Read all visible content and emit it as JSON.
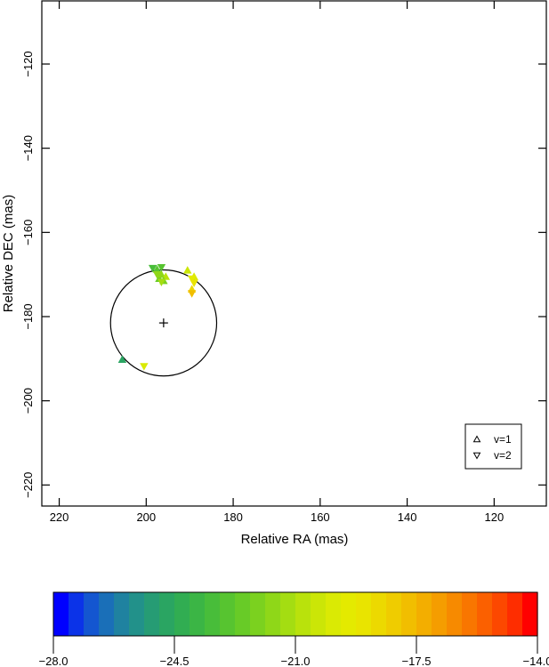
{
  "chart_data": {
    "type": "scatter",
    "xlabel": "Relative RA (mas)",
    "ylabel": "Relative DEC (mas)",
    "xlim": [
      224,
      108
    ],
    "ylim": [
      -225,
      -105
    ],
    "x_ticks": [
      220,
      200,
      180,
      160,
      140,
      120
    ],
    "y_ticks": [
      -120,
      -140,
      -160,
      -180,
      -200,
      -220
    ],
    "reference_circle": {
      "center": [
        196,
        -181.5
      ],
      "radius": 12.2
    },
    "center_marker": [
      196,
      -181.5
    ],
    "legend": {
      "position": "bottom-right",
      "entries": [
        {
          "symbol": "triangle-up",
          "label": "v=1"
        },
        {
          "symbol": "triangle-down",
          "label": "v=2"
        }
      ]
    },
    "series": [
      {
        "name": "v=1",
        "symbol": "triangle-up",
        "points": [
          {
            "x": 205.5,
            "y": -190.2,
            "v": -24.6
          },
          {
            "x": 197.5,
            "y": -168.8,
            "v": -23.0
          },
          {
            "x": 197.0,
            "y": -171.0,
            "v": -22.5
          },
          {
            "x": 196.5,
            "y": -170.0,
            "v": -21.8
          },
          {
            "x": 195.5,
            "y": -170.5,
            "v": -21.0
          },
          {
            "x": 196.0,
            "y": -171.5,
            "v": -22.0
          },
          {
            "x": 190.5,
            "y": -169.0,
            "v": -20.5
          },
          {
            "x": 189.0,
            "y": -170.5,
            "v": -19.8
          },
          {
            "x": 189.5,
            "y": -173.5,
            "v": -18.5
          }
        ]
      },
      {
        "name": "v=2",
        "symbol": "triangle-down",
        "points": [
          {
            "x": 200.5,
            "y": -191.8,
            "v": -20.0
          },
          {
            "x": 198.5,
            "y": -168.5,
            "v": -23.2
          },
          {
            "x": 196.5,
            "y": -168.3,
            "v": -22.8
          },
          {
            "x": 197.5,
            "y": -170.0,
            "v": -21.5
          },
          {
            "x": 196.5,
            "y": -171.8,
            "v": -21.2
          },
          {
            "x": 189.5,
            "y": -171.0,
            "v": -19.5
          },
          {
            "x": 189.0,
            "y": -172.0,
            "v": -19.0
          },
          {
            "x": 189.5,
            "y": -174.5,
            "v": -17.8
          }
        ]
      }
    ],
    "colorbar": {
      "min": -28.0,
      "max": -14.0,
      "tick_labels": [
        "−28.0",
        "−24.5",
        "−21.0",
        "−17.5",
        "−14.0"
      ],
      "tick_values": [
        -28.0,
        -24.5,
        -21.0,
        -17.5,
        -14.0
      ],
      "colors": [
        "#0000ff",
        "#0b33e8",
        "#1456d0",
        "#1a6fb8",
        "#1f82a0",
        "#22918a",
        "#269c74",
        "#2aa562",
        "#31ad52",
        "#3bb545",
        "#48bd3a",
        "#57c430",
        "#68cb27",
        "#7bd11f",
        "#8fd718",
        "#a4dd12",
        "#b9e20c",
        "#cbe607",
        "#daea04",
        "#e4ea00",
        "#e9e400",
        "#ecd900",
        "#efcc00",
        "#f1be00",
        "#f3ae00",
        "#f59d00",
        "#f78a00",
        "#f97600",
        "#fb6000",
        "#fc4800",
        "#fe2d00",
        "#ff0000"
      ]
    },
    "x_tick_labels": [
      "220",
      "200",
      "180",
      "160",
      "140",
      "120"
    ],
    "y_tick_labels": [
      "−120",
      "−140",
      "−160",
      "−180",
      "−200",
      "−220"
    ]
  }
}
